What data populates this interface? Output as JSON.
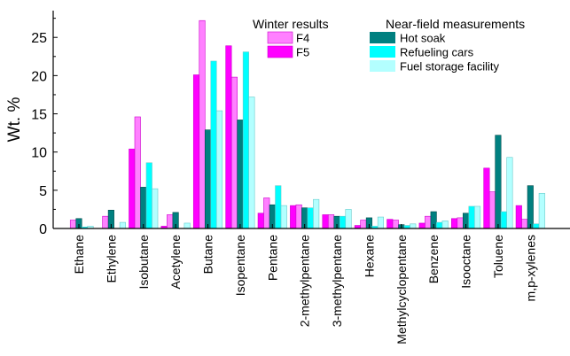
{
  "chart_data": {
    "type": "bar",
    "ylabel": "Wt. %",
    "xlabel": "",
    "ylim": [
      0,
      28.5
    ],
    "yticks": [
      0,
      5,
      10,
      15,
      20,
      25
    ],
    "categories": [
      "Ethane",
      "Ethylene",
      "Isobutane",
      "Acetylene",
      "Butane",
      "Isopentane",
      "Pentane",
      "2-methylpentane",
      "3-methylpentane",
      "Hexane",
      "Methylcyclopentane",
      "Benzene",
      "Isooctane",
      "Toluene",
      "m,p-xylenes"
    ],
    "legend_groups": [
      {
        "title": "Winter results",
        "entries": [
          "F4",
          "F5"
        ]
      },
      {
        "title": "Near-field measurements",
        "entries": [
          "Hot soak",
          "Refueling cars",
          "Fuel storage facility"
        ]
      }
    ],
    "series": [
      {
        "name": "F5",
        "color": "#ff00ff",
        "values": [
          0.0,
          0.0,
          10.4,
          0.3,
          20.1,
          23.9,
          2.0,
          3.0,
          1.8,
          0.4,
          1.2,
          0.7,
          1.3,
          7.9,
          3.0
        ]
      },
      {
        "name": "F4",
        "color": "#ff80ff",
        "values": [
          1.1,
          1.6,
          14.6,
          1.8,
          27.2,
          19.8,
          4.0,
          3.1,
          1.8,
          1.1,
          1.1,
          1.6,
          1.4,
          4.8,
          1.2
        ]
      },
      {
        "name": "Hot soak",
        "color": "#008080",
        "values": [
          1.3,
          2.4,
          5.4,
          2.1,
          12.9,
          14.2,
          3.1,
          2.7,
          1.6,
          1.4,
          0.5,
          2.2,
          2.0,
          12.2,
          5.6
        ]
      },
      {
        "name": "Refueling cars",
        "color": "#00ffff",
        "values": [
          0.2,
          0.0,
          8.6,
          0.0,
          21.9,
          23.1,
          5.6,
          2.7,
          1.6,
          0.3,
          0.4,
          0.8,
          2.9,
          2.2,
          0.6
        ]
      },
      {
        "name": "Fuel storage facility",
        "color": "#b3ffff",
        "values": [
          0.3,
          0.8,
          5.2,
          0.7,
          15.4,
          17.2,
          3.0,
          3.8,
          2.5,
          1.5,
          0.6,
          1.0,
          2.9,
          9.3,
          4.6
        ]
      }
    ]
  }
}
